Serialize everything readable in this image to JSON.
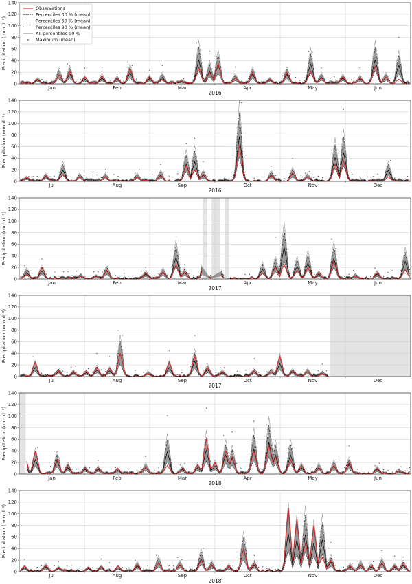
{
  "chart_data": {
    "type": "line",
    "ylabel": "Precipitation (mm d⁻¹)",
    "yticks": [
      0,
      20,
      40,
      60,
      80,
      100,
      120,
      140
    ],
    "ylim": [
      0,
      140
    ],
    "legend": {
      "placement": "top-left",
      "entries": [
        {
          "label": "Observations",
          "style": "obs",
          "color": "#d62728"
        },
        {
          "label": "Percentiles 30 % (mean)",
          "style": "p30",
          "color": "#000000"
        },
        {
          "label": "Percentiles 60 % (mean)",
          "style": "p60",
          "color": "#000000"
        },
        {
          "label": "Percentiles 90 % (mean)",
          "style": "p90",
          "color": "#000000"
        },
        {
          "label": "All percentiles 90 %",
          "style": "all90",
          "color": "#888888"
        },
        {
          "label": "Maximum (mean)",
          "style": "max",
          "color": "#555555"
        }
      ]
    },
    "colors": {
      "observations": "#d62728",
      "band": "#8c8c8c",
      "grid": "#cccccc",
      "missing": "#e3e3e3"
    },
    "panels": [
      {
        "xlabel": "2016",
        "months": [
          "Jan",
          "Feb",
          "Mar",
          "Apr",
          "May",
          "Jun"
        ],
        "days": 182,
        "missing": [],
        "peaks": [
          [
            8,
            8,
            12
          ],
          [
            18,
            15,
            28
          ],
          [
            23,
            22,
            32
          ],
          [
            30,
            12,
            15
          ],
          [
            38,
            14,
            18
          ],
          [
            45,
            10,
            14
          ],
          [
            51,
            25,
            35
          ],
          [
            60,
            12,
            16
          ],
          [
            66,
            8,
            20
          ],
          [
            75,
            5,
            8
          ],
          [
            83,
            28,
            75
          ],
          [
            88,
            20,
            40
          ],
          [
            92,
            35,
            60
          ],
          [
            100,
            10,
            18
          ],
          [
            108,
            20,
            30
          ],
          [
            116,
            8,
            12
          ],
          [
            124,
            20,
            30
          ],
          [
            135,
            22,
            62
          ],
          [
            140,
            10,
            20
          ],
          [
            150,
            12,
            18
          ],
          [
            158,
            10,
            16
          ],
          [
            165,
            30,
            75
          ],
          [
            170,
            12,
            20
          ],
          [
            176,
            8,
            58
          ]
        ]
      },
      {
        "xlabel": "2016",
        "months": [
          "Jul",
          "Aug",
          "Sep",
          "Oct",
          "Nov",
          "Dec"
        ],
        "days": 184,
        "missing": [],
        "peaks": [
          [
            3,
            8,
            10
          ],
          [
            12,
            10,
            15
          ],
          [
            20,
            12,
            35
          ],
          [
            28,
            8,
            15
          ],
          [
            40,
            8,
            15
          ],
          [
            55,
            8,
            15
          ],
          [
            66,
            10,
            20
          ],
          [
            78,
            28,
            55
          ],
          [
            82,
            20,
            62
          ],
          [
            86,
            12,
            20
          ],
          [
            103,
            62,
            140
          ],
          [
            118,
            10,
            20
          ],
          [
            128,
            15,
            25
          ],
          [
            135,
            8,
            15
          ],
          [
            148,
            30,
            75
          ],
          [
            152,
            35,
            90
          ],
          [
            173,
            8,
            35
          ]
        ]
      },
      {
        "xlabel": "2017",
        "months": [
          "Jan",
          "Feb",
          "Mar",
          "Apr",
          "May",
          "Jun"
        ],
        "days": 181,
        "missing": [
          [
            85,
            87
          ],
          [
            89,
            93
          ],
          [
            95,
            97
          ]
        ],
        "peaks": [
          [
            3,
            8,
            20
          ],
          [
            10,
            20,
            25
          ],
          [
            28,
            5,
            10
          ],
          [
            35,
            5,
            8
          ],
          [
            40,
            15,
            25
          ],
          [
            58,
            10,
            15
          ],
          [
            66,
            12,
            20
          ],
          [
            72,
            25,
            68
          ],
          [
            76,
            12,
            20
          ],
          [
            85,
            28,
            40
          ],
          [
            92,
            10,
            25
          ],
          [
            112,
            10,
            30
          ],
          [
            118,
            20,
            40
          ],
          [
            122,
            25,
            100
          ],
          [
            128,
            15,
            40
          ],
          [
            133,
            20,
            50
          ],
          [
            138,
            10,
            15
          ],
          [
            145,
            30,
            65
          ],
          [
            155,
            5,
            10
          ],
          [
            165,
            10,
            15
          ],
          [
            178,
            15,
            55
          ]
        ]
      },
      {
        "xlabel": "2017",
        "months": [
          "Jul",
          "Aug",
          "Sep",
          "Oct",
          "Nov",
          "Dec"
        ],
        "days": 184,
        "missing": [
          [
            146,
            184
          ]
        ],
        "peaks": [
          [
            7,
            25,
            28
          ],
          [
            18,
            10,
            15
          ],
          [
            25,
            8,
            12
          ],
          [
            31,
            10,
            12
          ],
          [
            36,
            15,
            20
          ],
          [
            42,
            15,
            18
          ],
          [
            47,
            40,
            72
          ],
          [
            60,
            5,
            10
          ],
          [
            70,
            25,
            28
          ],
          [
            82,
            35,
            48
          ],
          [
            88,
            15,
            22
          ],
          [
            95,
            8,
            12
          ],
          [
            110,
            10,
            15
          ],
          [
            118,
            8,
            15
          ],
          [
            122,
            35,
            40
          ],
          [
            128,
            10,
            15
          ],
          [
            135,
            8,
            15
          ],
          [
            142,
            5,
            10
          ]
        ]
      },
      {
        "xlabel": "2018",
        "months": [
          "Jan",
          "Feb",
          "Mar",
          "Apr",
          "May",
          "Jun"
        ],
        "days": 181,
        "missing": [
          [
            0,
            3
          ]
        ],
        "peaks": [
          [
            2,
            35,
            36
          ],
          [
            7,
            40,
            45
          ],
          [
            17,
            25,
            40
          ],
          [
            22,
            15,
            20
          ],
          [
            30,
            10,
            15
          ],
          [
            36,
            10,
            15
          ],
          [
            45,
            10,
            12
          ],
          [
            58,
            12,
            20
          ],
          [
            68,
            15,
            70
          ],
          [
            75,
            10,
            15
          ],
          [
            82,
            15,
            20
          ],
          [
            86,
            60,
            75
          ],
          [
            90,
            20,
            25
          ],
          [
            95,
            40,
            60
          ],
          [
            98,
            30,
            50
          ],
          [
            108,
            40,
            80
          ],
          [
            115,
            50,
            100
          ],
          [
            118,
            30,
            60
          ],
          [
            125,
            25,
            60
          ],
          [
            130,
            15,
            20
          ],
          [
            138,
            10,
            20
          ],
          [
            145,
            15,
            25
          ],
          [
            152,
            20,
            30
          ],
          [
            165,
            10,
            15
          ],
          [
            175,
            5,
            10
          ]
        ]
      },
      {
        "xlabel": "2018",
        "months": [
          "Jul",
          "Aug",
          "Sep",
          "Oct",
          "Nov",
          "Dec"
        ],
        "days": 184,
        "missing": [],
        "peaks": [
          [
            2,
            10,
            12
          ],
          [
            12,
            10,
            15
          ],
          [
            18,
            8,
            10
          ],
          [
            32,
            8,
            10
          ],
          [
            38,
            8,
            12
          ],
          [
            46,
            10,
            12
          ],
          [
            55,
            12,
            18
          ],
          [
            65,
            15,
            28
          ],
          [
            75,
            12,
            20
          ],
          [
            85,
            20,
            40
          ],
          [
            90,
            12,
            20
          ],
          [
            98,
            10,
            14
          ],
          [
            105,
            40,
            70
          ],
          [
            110,
            15,
            20
          ],
          [
            126,
            110,
            120
          ],
          [
            130,
            90,
            100
          ],
          [
            134,
            50,
            115
          ],
          [
            138,
            80,
            90
          ],
          [
            142,
            25,
            100
          ],
          [
            146,
            20,
            30
          ],
          [
            155,
            10,
            15
          ],
          [
            160,
            12,
            20
          ],
          [
            165,
            10,
            15
          ],
          [
            170,
            15,
            25
          ],
          [
            176,
            10,
            15
          ],
          [
            180,
            15,
            20
          ]
        ]
      }
    ]
  }
}
